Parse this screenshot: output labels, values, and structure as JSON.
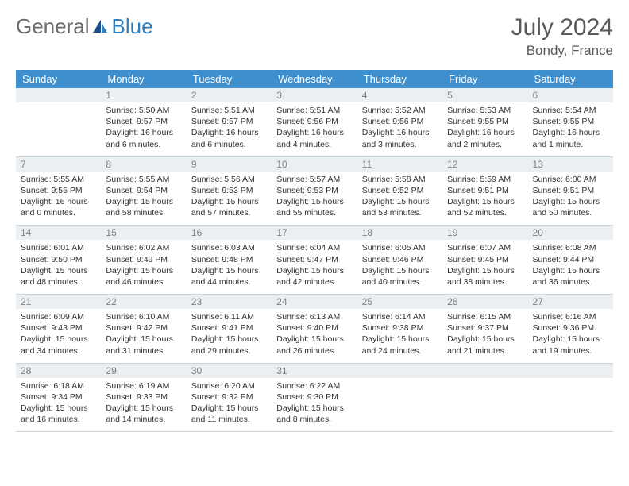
{
  "brand": {
    "part1": "General",
    "part2": "Blue"
  },
  "title": "July 2024",
  "location": "Bondy, France",
  "colors": {
    "header_bg": "#3e8fce",
    "header_text": "#ffffff",
    "daynum_bg": "#eceff1",
    "daynum_text": "#7a7f85",
    "body_text": "#333333",
    "rule": "#c9d4db",
    "logo_gray": "#6b6b6b",
    "logo_blue": "#2f7fbf"
  },
  "weekdays": [
    "Sunday",
    "Monday",
    "Tuesday",
    "Wednesday",
    "Thursday",
    "Friday",
    "Saturday"
  ],
  "weeks": [
    [
      {
        "n": "",
        "sunrise": "",
        "sunset": "",
        "daylight": ""
      },
      {
        "n": "1",
        "sunrise": "Sunrise: 5:50 AM",
        "sunset": "Sunset: 9:57 PM",
        "daylight": "Daylight: 16 hours and 6 minutes."
      },
      {
        "n": "2",
        "sunrise": "Sunrise: 5:51 AM",
        "sunset": "Sunset: 9:57 PM",
        "daylight": "Daylight: 16 hours and 6 minutes."
      },
      {
        "n": "3",
        "sunrise": "Sunrise: 5:51 AM",
        "sunset": "Sunset: 9:56 PM",
        "daylight": "Daylight: 16 hours and 4 minutes."
      },
      {
        "n": "4",
        "sunrise": "Sunrise: 5:52 AM",
        "sunset": "Sunset: 9:56 PM",
        "daylight": "Daylight: 16 hours and 3 minutes."
      },
      {
        "n": "5",
        "sunrise": "Sunrise: 5:53 AM",
        "sunset": "Sunset: 9:55 PM",
        "daylight": "Daylight: 16 hours and 2 minutes."
      },
      {
        "n": "6",
        "sunrise": "Sunrise: 5:54 AM",
        "sunset": "Sunset: 9:55 PM",
        "daylight": "Daylight: 16 hours and 1 minute."
      }
    ],
    [
      {
        "n": "7",
        "sunrise": "Sunrise: 5:55 AM",
        "sunset": "Sunset: 9:55 PM",
        "daylight": "Daylight: 16 hours and 0 minutes."
      },
      {
        "n": "8",
        "sunrise": "Sunrise: 5:55 AM",
        "sunset": "Sunset: 9:54 PM",
        "daylight": "Daylight: 15 hours and 58 minutes."
      },
      {
        "n": "9",
        "sunrise": "Sunrise: 5:56 AM",
        "sunset": "Sunset: 9:53 PM",
        "daylight": "Daylight: 15 hours and 57 minutes."
      },
      {
        "n": "10",
        "sunrise": "Sunrise: 5:57 AM",
        "sunset": "Sunset: 9:53 PM",
        "daylight": "Daylight: 15 hours and 55 minutes."
      },
      {
        "n": "11",
        "sunrise": "Sunrise: 5:58 AM",
        "sunset": "Sunset: 9:52 PM",
        "daylight": "Daylight: 15 hours and 53 minutes."
      },
      {
        "n": "12",
        "sunrise": "Sunrise: 5:59 AM",
        "sunset": "Sunset: 9:51 PM",
        "daylight": "Daylight: 15 hours and 52 minutes."
      },
      {
        "n": "13",
        "sunrise": "Sunrise: 6:00 AM",
        "sunset": "Sunset: 9:51 PM",
        "daylight": "Daylight: 15 hours and 50 minutes."
      }
    ],
    [
      {
        "n": "14",
        "sunrise": "Sunrise: 6:01 AM",
        "sunset": "Sunset: 9:50 PM",
        "daylight": "Daylight: 15 hours and 48 minutes."
      },
      {
        "n": "15",
        "sunrise": "Sunrise: 6:02 AM",
        "sunset": "Sunset: 9:49 PM",
        "daylight": "Daylight: 15 hours and 46 minutes."
      },
      {
        "n": "16",
        "sunrise": "Sunrise: 6:03 AM",
        "sunset": "Sunset: 9:48 PM",
        "daylight": "Daylight: 15 hours and 44 minutes."
      },
      {
        "n": "17",
        "sunrise": "Sunrise: 6:04 AM",
        "sunset": "Sunset: 9:47 PM",
        "daylight": "Daylight: 15 hours and 42 minutes."
      },
      {
        "n": "18",
        "sunrise": "Sunrise: 6:05 AM",
        "sunset": "Sunset: 9:46 PM",
        "daylight": "Daylight: 15 hours and 40 minutes."
      },
      {
        "n": "19",
        "sunrise": "Sunrise: 6:07 AM",
        "sunset": "Sunset: 9:45 PM",
        "daylight": "Daylight: 15 hours and 38 minutes."
      },
      {
        "n": "20",
        "sunrise": "Sunrise: 6:08 AM",
        "sunset": "Sunset: 9:44 PM",
        "daylight": "Daylight: 15 hours and 36 minutes."
      }
    ],
    [
      {
        "n": "21",
        "sunrise": "Sunrise: 6:09 AM",
        "sunset": "Sunset: 9:43 PM",
        "daylight": "Daylight: 15 hours and 34 minutes."
      },
      {
        "n": "22",
        "sunrise": "Sunrise: 6:10 AM",
        "sunset": "Sunset: 9:42 PM",
        "daylight": "Daylight: 15 hours and 31 minutes."
      },
      {
        "n": "23",
        "sunrise": "Sunrise: 6:11 AM",
        "sunset": "Sunset: 9:41 PM",
        "daylight": "Daylight: 15 hours and 29 minutes."
      },
      {
        "n": "24",
        "sunrise": "Sunrise: 6:13 AM",
        "sunset": "Sunset: 9:40 PM",
        "daylight": "Daylight: 15 hours and 26 minutes."
      },
      {
        "n": "25",
        "sunrise": "Sunrise: 6:14 AM",
        "sunset": "Sunset: 9:38 PM",
        "daylight": "Daylight: 15 hours and 24 minutes."
      },
      {
        "n": "26",
        "sunrise": "Sunrise: 6:15 AM",
        "sunset": "Sunset: 9:37 PM",
        "daylight": "Daylight: 15 hours and 21 minutes."
      },
      {
        "n": "27",
        "sunrise": "Sunrise: 6:16 AM",
        "sunset": "Sunset: 9:36 PM",
        "daylight": "Daylight: 15 hours and 19 minutes."
      }
    ],
    [
      {
        "n": "28",
        "sunrise": "Sunrise: 6:18 AM",
        "sunset": "Sunset: 9:34 PM",
        "daylight": "Daylight: 15 hours and 16 minutes."
      },
      {
        "n": "29",
        "sunrise": "Sunrise: 6:19 AM",
        "sunset": "Sunset: 9:33 PM",
        "daylight": "Daylight: 15 hours and 14 minutes."
      },
      {
        "n": "30",
        "sunrise": "Sunrise: 6:20 AM",
        "sunset": "Sunset: 9:32 PM",
        "daylight": "Daylight: 15 hours and 11 minutes."
      },
      {
        "n": "31",
        "sunrise": "Sunrise: 6:22 AM",
        "sunset": "Sunset: 9:30 PM",
        "daylight": "Daylight: 15 hours and 8 minutes."
      },
      {
        "n": "",
        "sunrise": "",
        "sunset": "",
        "daylight": ""
      },
      {
        "n": "",
        "sunrise": "",
        "sunset": "",
        "daylight": ""
      },
      {
        "n": "",
        "sunrise": "",
        "sunset": "",
        "daylight": ""
      }
    ]
  ]
}
